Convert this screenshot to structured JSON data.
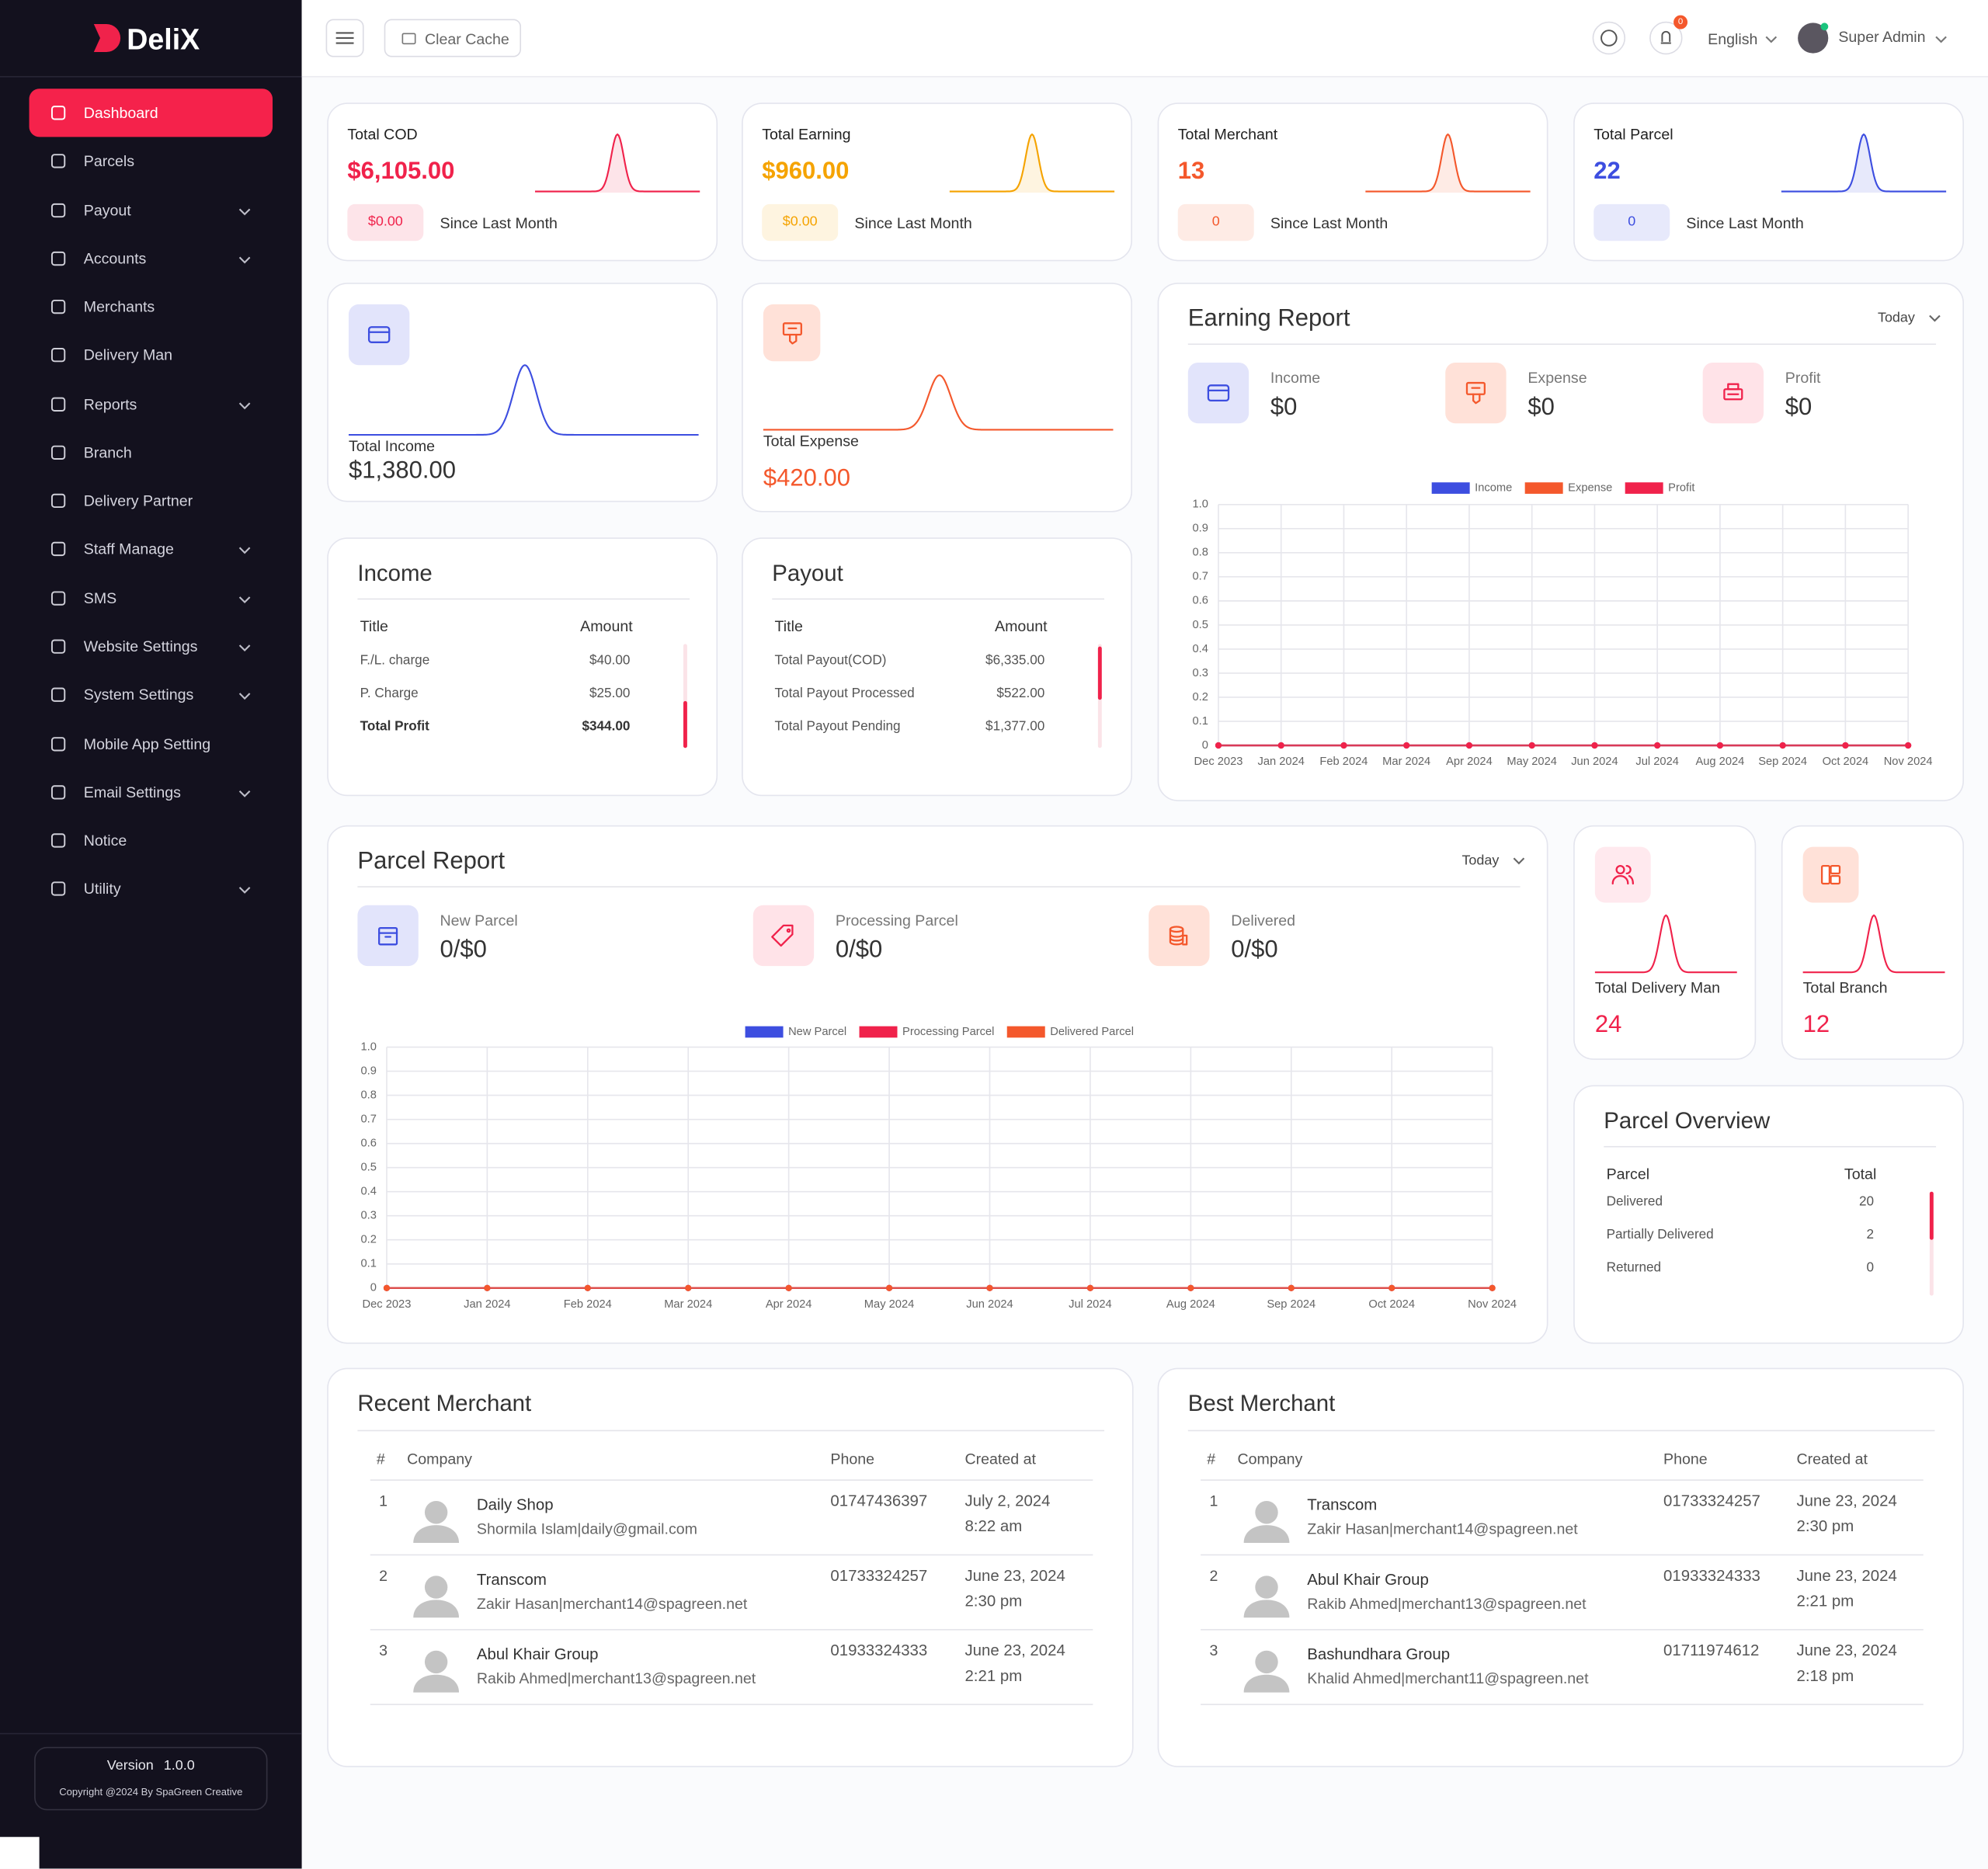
{
  "sidebar": {
    "brand": "DeliX",
    "menu": [
      {
        "label": "Dashboard",
        "active": true
      },
      {
        "label": "Parcels"
      },
      {
        "label": "Payout",
        "submenu": true
      },
      {
        "label": "Accounts",
        "submenu": true
      },
      {
        "label": "Merchants"
      },
      {
        "label": "Delivery Man"
      },
      {
        "label": "Reports",
        "submenu": true
      },
      {
        "label": "Branch"
      },
      {
        "label": "Delivery Partner"
      },
      {
        "label": "Staff Manage",
        "submenu": true
      },
      {
        "label": "SMS",
        "submenu": true
      },
      {
        "label": "Website Settings",
        "submenu": true
      },
      {
        "label": "System Settings",
        "submenu": true
      },
      {
        "label": "Mobile App Setting"
      },
      {
        "label": "Email Settings",
        "submenu": true
      },
      {
        "label": "Notice"
      },
      {
        "label": "Utility",
        "submenu": true
      }
    ],
    "version_label": "Version",
    "version": "1.0.0",
    "copyright": "Copyright @2024 By SpaGreen Creative"
  },
  "topbar": {
    "clear_cache": "Clear Cache",
    "notification_count": "0",
    "language": "English",
    "user": "Super Admin"
  },
  "stat_cards": [
    {
      "title": "Total COD",
      "value": "$6,105.00",
      "change": "$0.00",
      "note": "Since Last Month",
      "color": "#f0224b"
    },
    {
      "title": "Total Earning",
      "value": "$960.00",
      "change": "$0.00",
      "note": "Since Last Month",
      "color": "#f5a300"
    },
    {
      "title": "Total Merchant",
      "value": "13",
      "change": "0",
      "note": "Since Last Month",
      "color": "#f4582c"
    },
    {
      "title": "Total Parcel",
      "value": "22",
      "change": "0",
      "note": "Since Last Month",
      "color": "#3d4ee0"
    }
  ],
  "income_card": {
    "label": "Total Income",
    "value": "$1,380.00"
  },
  "expense_card": {
    "label": "Total Expense",
    "value": "$420.00"
  },
  "income_table": {
    "title": "Income",
    "columns": [
      "Title",
      "Amount"
    ],
    "rows": [
      [
        "F./L. charge",
        "$40.00"
      ],
      [
        "P. Charge",
        "$25.00"
      ],
      [
        "Total Profit",
        "$344.00"
      ]
    ]
  },
  "payout_table": {
    "title": "Payout",
    "columns": [
      "Title",
      "Amount"
    ],
    "rows": [
      [
        "Total Payout(COD)",
        "$6,335.00"
      ],
      [
        "Total Payout Processed",
        "$522.00"
      ],
      [
        "Total Payout Pending",
        "$1,377.00"
      ]
    ]
  },
  "earning_report": {
    "title": "Earning Report",
    "filter": "Today",
    "summary": [
      {
        "label": "Income",
        "value": "$0"
      },
      {
        "label": "Expense",
        "value": "$0"
      },
      {
        "label": "Profit",
        "value": "$0"
      }
    ]
  },
  "parcel_report": {
    "title": "Parcel Report",
    "filter": "Today",
    "summary": [
      {
        "label": "New Parcel",
        "value": "0/$0"
      },
      {
        "label": "Processing Parcel",
        "value": "0/$0"
      },
      {
        "label": "Delivered",
        "value": "0/$0"
      }
    ]
  },
  "delivery_man_card": {
    "label": "Total Delivery Man",
    "value": "24"
  },
  "branch_card": {
    "label": "Total Branch",
    "value": "12"
  },
  "parcel_overview": {
    "title": "Parcel Overview",
    "columns": [
      "Parcel",
      "Total"
    ],
    "rows": [
      [
        "Delivered",
        "20"
      ],
      [
        "Partially Delivered",
        "2"
      ],
      [
        "Returned",
        "0"
      ]
    ]
  },
  "recent_merchant": {
    "title": "Recent Merchant",
    "columns": [
      "#",
      "Company",
      "Phone",
      "Created at"
    ],
    "rows": [
      {
        "index": "1",
        "company": "Daily Shop",
        "contact": "Shormila Islam|daily@gmail.com",
        "phone": "01747436397",
        "date": "July 2, 2024",
        "time": "8:22 am"
      },
      {
        "index": "2",
        "company": "Transcom",
        "contact": "Zakir Hasan|merchant14@spagreen.net",
        "phone": "01733324257",
        "date": "June 23, 2024",
        "time": "2:30 pm"
      },
      {
        "index": "3",
        "company": "Abul Khair Group",
        "contact": "Rakib Ahmed|merchant13@spagreen.net",
        "phone": "01933324333",
        "date": "June 23, 2024",
        "time": "2:21 pm"
      }
    ]
  },
  "best_merchant": {
    "title": "Best Merchant",
    "columns": [
      "#",
      "Company",
      "Phone",
      "Created at"
    ],
    "rows": [
      {
        "index": "1",
        "company": "Transcom",
        "contact": "Zakir Hasan|merchant14@spagreen.net",
        "phone": "01733324257",
        "date": "June 23, 2024",
        "time": "2:30 pm"
      },
      {
        "index": "2",
        "company": "Abul Khair Group",
        "contact": "Rakib Ahmed|merchant13@spagreen.net",
        "phone": "01933324333",
        "date": "June 23, 2024",
        "time": "2:21 pm"
      },
      {
        "index": "3",
        "company": "Bashundhara Group",
        "contact": "Khalid Ahmed|merchant11@spagreen.net",
        "phone": "01711974612",
        "date": "June 23, 2024",
        "time": "2:18 pm"
      }
    ]
  },
  "chart_data": [
    {
      "type": "line",
      "categories": [
        "Dec 2023",
        "Jan 2024",
        "Feb 2024",
        "Mar 2024",
        "Apr 2024",
        "May 2024",
        "Jun 2024",
        "Jul 2024",
        "Aug 2024",
        "Sep 2024",
        "Oct 2024",
        "Nov 2024"
      ],
      "series": [
        {
          "name": "Income",
          "color": "#3d4ee0",
          "values": [
            0,
            0,
            0,
            0,
            0,
            0,
            0,
            0,
            0,
            0,
            0,
            0
          ]
        },
        {
          "name": "Expense",
          "color": "#f4582c",
          "values": [
            0,
            0,
            0,
            0,
            0,
            0,
            0,
            0,
            0,
            0,
            0,
            0
          ]
        },
        {
          "name": "Profit",
          "color": "#f0224b",
          "values": [
            0,
            0,
            0,
            0,
            0,
            0,
            0,
            0,
            0,
            0,
            0,
            0
          ]
        }
      ],
      "ylim": [
        0,
        1
      ],
      "yticks": [
        0,
        0.1,
        0.2,
        0.3,
        0.4,
        0.5,
        0.6,
        0.7,
        0.8,
        0.9,
        {
          "value": 1,
          "label": "1.0"
        }
      ],
      "grid": true,
      "legend": "top"
    },
    {
      "type": "line",
      "categories": [
        "Dec 2023",
        "Jan 2024",
        "Feb 2024",
        "Mar 2024",
        "Apr 2024",
        "May 2024",
        "Jun 2024",
        "Jul 2024",
        "Aug 2024",
        "Sep 2024",
        "Oct 2024",
        "Nov 2024"
      ],
      "series": [
        {
          "name": "New Parcel",
          "color": "#3d4ee0",
          "values": [
            0,
            0,
            0,
            0,
            0,
            0,
            0,
            0,
            0,
            0,
            0,
            0
          ]
        },
        {
          "name": "Processing Parcel",
          "color": "#f0224b",
          "values": [
            0,
            0,
            0,
            0,
            0,
            0,
            0,
            0,
            0,
            0,
            0,
            0
          ]
        },
        {
          "name": "Delivered Parcel",
          "color": "#f4582c",
          "values": [
            0,
            0,
            0,
            0,
            0,
            0,
            0,
            0,
            0,
            0,
            0,
            0
          ]
        }
      ],
      "ylim": [
        0,
        1
      ],
      "yticks": [
        0,
        0.1,
        0.2,
        0.3,
        0.4,
        0.5,
        0.6,
        0.7,
        0.8,
        0.9,
        {
          "value": 1,
          "label": "1.0"
        }
      ],
      "grid": true,
      "legend": "top"
    }
  ]
}
